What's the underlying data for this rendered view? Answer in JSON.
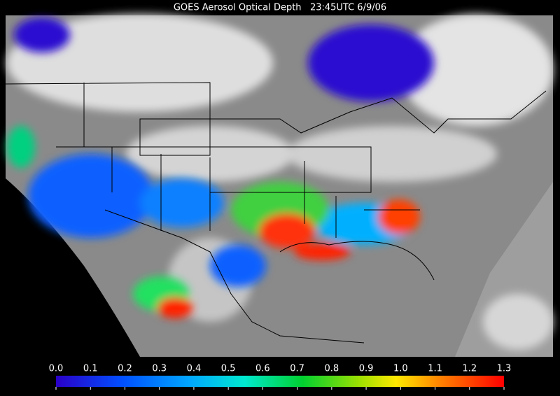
{
  "title": "GOES Aerosol Optical Depth   23:45UTC 6/9/06",
  "colorbar": {
    "range": [
      0,
      1.3
    ],
    "ticks": [
      {
        "value": 0,
        "label": "0.0"
      },
      0.1,
      0.2,
      0.3,
      0.4,
      0.5,
      0.6,
      0.7,
      0.8,
      0.9,
      {
        "value": 1,
        "label": "1.0"
      },
      1.1,
      1.2,
      1.3
    ]
  }
}
